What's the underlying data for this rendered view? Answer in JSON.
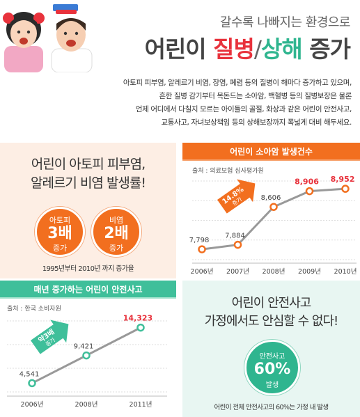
{
  "header": {
    "subtitle": "갈수록 나빠지는 환경으로",
    "title_prefix": "어린이",
    "title_red": "질병",
    "title_slash": "/",
    "title_green": "상해",
    "title_suffix": "증가"
  },
  "intro": {
    "lines": [
      "아토피 피부염, 알레르기 비염, 장염, 폐렴 등의 질병이 해마다 증가하고 있으며,",
      "흔한 질병 감기부터 목돈드는 소아암, 백혈병 등의 질병보장은 물론",
      "언제 어디에서 다칠지 모르는 아이들의 골절, 화상과 같은 어린이 안전사고,",
      "교통사고, 자녀보상책임 등의 상해보장까지 폭넓게 대비 해두세요."
    ]
  },
  "atopy": {
    "title_line1": "어린이 아토피 피부염,",
    "title_line2": "알레르기 비염 발생률!",
    "bubbles": [
      {
        "label": "아토피",
        "value": "3배",
        "suffix": "증가"
      },
      {
        "label": "비염",
        "value": "2배",
        "suffix": "증가"
      }
    ],
    "note": "1995년부터 2010년 까지 증가율",
    "color": "#f26f1f"
  },
  "chart_data": [
    {
      "type": "line",
      "title": "어린이 소아암 발생건수",
      "source": "출처 : 의료보험 심사평가원",
      "categories": [
        "2006년",
        "2007년",
        "2008년",
        "2009년",
        "2010년"
      ],
      "values": [
        7798,
        7884,
        8606,
        8906,
        8952
      ],
      "value_labels": [
        "7,798",
        "7,884",
        "8,606",
        "8,906",
        "8,952"
      ],
      "highlight_indices": [
        3,
        4
      ],
      "annotation": {
        "value": "14.8%",
        "label": "증가"
      },
      "ylim": [
        7600,
        9100
      ],
      "color": "#f26f1f"
    },
    {
      "type": "line",
      "title": "매년 증가하는 어린이 안전사고",
      "source": "출처 : 한국 소비자원",
      "categories": [
        "2006년",
        "2008년",
        "2011년"
      ],
      "values": [
        4541,
        9421,
        14323
      ],
      "value_labels": [
        "4,541",
        "9,421",
        "14,323"
      ],
      "highlight_indices": [
        2
      ],
      "annotation": {
        "value": "약3배",
        "label": "증가"
      },
      "ylim": [
        3000,
        15500
      ],
      "color": "#3fbf9a"
    }
  ],
  "home": {
    "title_line1": "어린이 안전사고",
    "title_line2": "가정에서도 안심할 수 없다!",
    "bubble_label": "안전사고",
    "bubble_value": "60%",
    "bubble_sub": "발생",
    "note": "어린이 전체 안전사고의 60%는 가정 내 발생",
    "color": "#2fb58f"
  }
}
